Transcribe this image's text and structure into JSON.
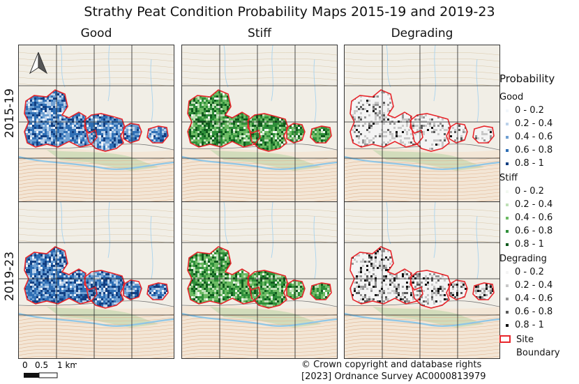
{
  "title": "Strathy Peat Condition Probability Maps 2015-19 and 2019-23",
  "columns": [
    "Good",
    "Stiff",
    "Degrading"
  ],
  "rows": [
    "2015-19",
    "2019-23"
  ],
  "legend": {
    "title": "Probability",
    "groups": [
      {
        "name": "Good",
        "color": "#1f5ba8",
        "items": [
          "0 - 0.2",
          "0.2 - 0.4",
          "0.4 - 0.6",
          "0.6 - 0.8",
          "0.8 - 1"
        ],
        "swatches": [
          "#f2f6fb",
          "#bcd2ea",
          "#6fa0d2",
          "#2f6fb5",
          "#123f82"
        ]
      },
      {
        "name": "Stiff",
        "color": "#2e8b3a",
        "items": [
          "0 - 0.2",
          "0.2 - 0.4",
          "0.4 - 0.6",
          "0.6 - 0.8",
          "0.8 - 1"
        ],
        "swatches": [
          "#f2f8f1",
          "#bfe0b7",
          "#6dbb64",
          "#2f8f3a",
          "#0f5a1e"
        ]
      },
      {
        "name": "Degrading",
        "color": "#333333",
        "items": [
          "0 - 0.2",
          "0.2 - 0.4",
          "0.4 - 0.6",
          "0.6 - 0.8",
          "0.8 - 1"
        ],
        "swatches": [
          "#f4f4f4",
          "#c8c8c8",
          "#969696",
          "#5a5a5a",
          "#111111"
        ]
      }
    ],
    "boundary_label": "Site Boundary",
    "boundary_color": "#e8262b"
  },
  "scale": {
    "labels": [
      "0",
      "0.5",
      "1 km"
    ]
  },
  "copyright": [
    "© Crown copyright and database rights",
    "[2023] Ordnance Survey AC0000813979"
  ],
  "icons": {
    "north_arrow": "north-arrow-icon"
  }
}
